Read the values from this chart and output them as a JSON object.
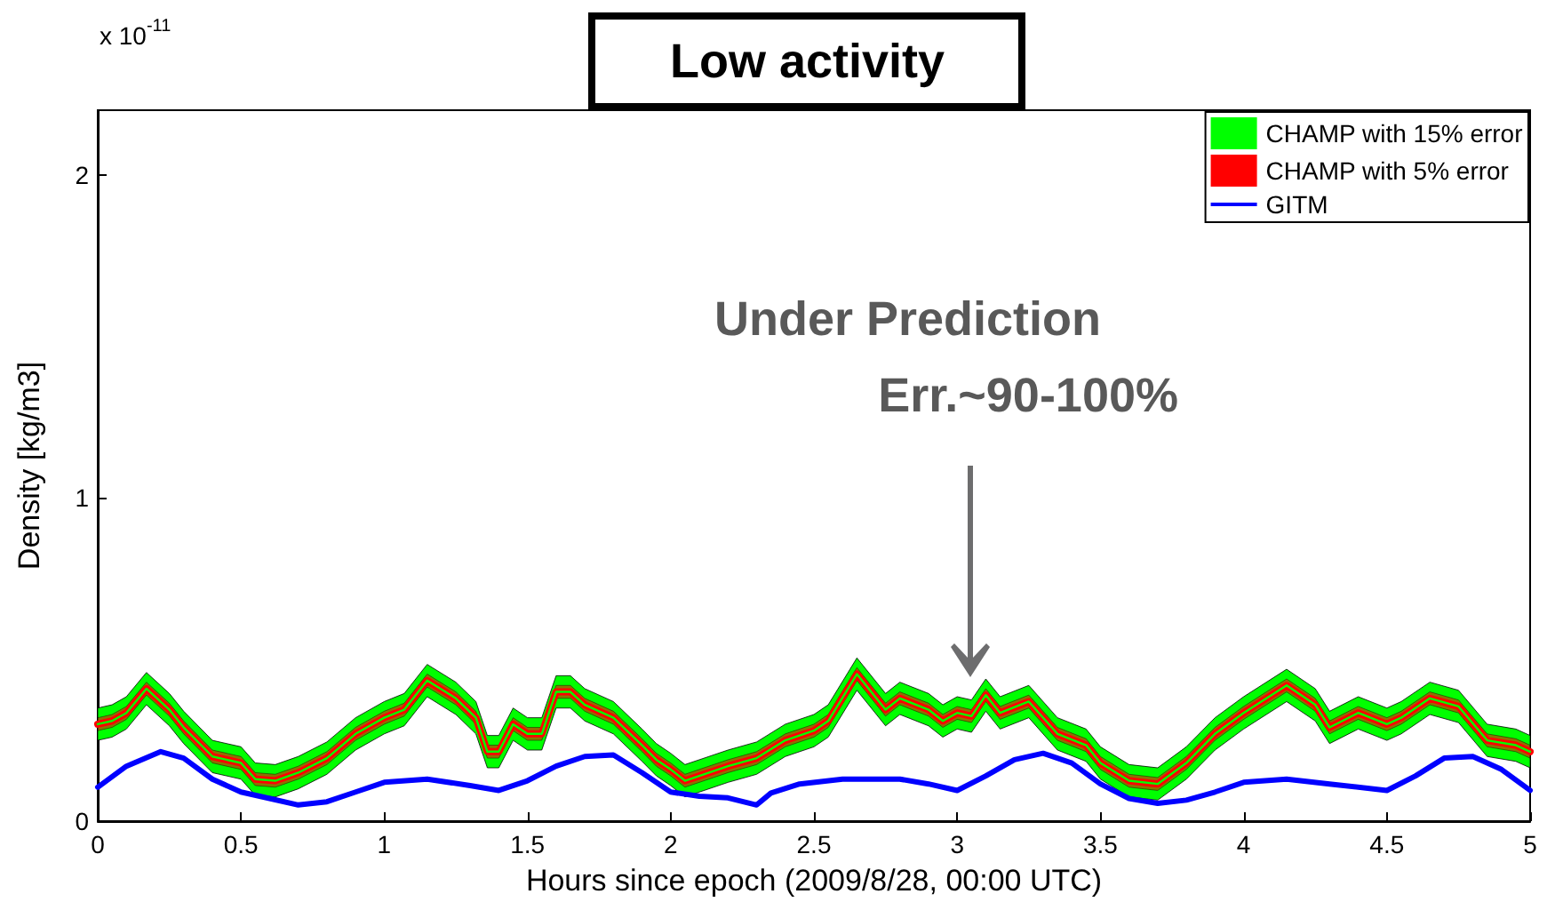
{
  "chart_data": {
    "type": "line",
    "title": "Low activity",
    "xlabel": "Hours since epoch (2009/8/28, 00:00 UTC)",
    "ylabel": "Density [kg/m3]",
    "annotations": [
      "x 10$^{-11}$",
      "Under Prediction",
      "Err.~90-100%"
    ],
    "x": [
      0,
      0.05,
      0.1,
      0.17,
      0.25,
      0.3,
      0.4,
      0.5,
      0.55,
      0.62,
      0.7,
      0.8,
      0.9,
      1.0,
      1.07,
      1.15,
      1.25,
      1.32,
      1.36,
      1.4,
      1.45,
      1.5,
      1.55,
      1.6,
      1.65,
      1.7,
      1.8,
      1.9,
      1.95,
      2.0,
      2.05,
      2.1,
      2.2,
      2.3,
      2.4,
      2.5,
      2.55,
      2.65,
      2.75,
      2.8,
      2.9,
      2.95,
      3.0,
      3.05,
      3.1,
      3.15,
      3.25,
      3.35,
      3.45,
      3.5,
      3.6,
      3.7,
      3.8,
      3.9,
      4.0,
      4.15,
      4.25,
      4.3,
      4.4,
      4.5,
      4.55,
      4.65,
      4.75,
      4.85,
      4.95,
      5.0
    ],
    "series": [
      {
        "name": "CHAMP with 15% error",
        "color": "#00ff00",
        "values": [
          0.3,
          0.31,
          0.335,
          0.41,
          0.345,
          0.29,
          0.2,
          0.18,
          0.13,
          0.125,
          0.15,
          0.195,
          0.27,
          0.32,
          0.345,
          0.435,
          0.38,
          0.32,
          0.215,
          0.215,
          0.3,
          0.27,
          0.27,
          0.4,
          0.4,
          0.36,
          0.32,
          0.235,
          0.19,
          0.16,
          0.125,
          0.14,
          0.17,
          0.195,
          0.25,
          0.28,
          0.31,
          0.455,
          0.345,
          0.38,
          0.345,
          0.31,
          0.335,
          0.325,
          0.39,
          0.335,
          0.37,
          0.27,
          0.235,
          0.18,
          0.125,
          0.115,
          0.18,
          0.27,
          0.335,
          0.42,
          0.36,
          0.29,
          0.335,
          0.3,
          0.32,
          0.38,
          0.355,
          0.25,
          0.235,
          0.215
        ],
        "lower": [
          0.25,
          0.26,
          0.285,
          0.36,
          0.295,
          0.24,
          0.15,
          0.13,
          0.08,
          0.075,
          0.1,
          0.145,
          0.22,
          0.27,
          0.295,
          0.385,
          0.33,
          0.27,
          0.165,
          0.165,
          0.25,
          0.22,
          0.22,
          0.35,
          0.35,
          0.31,
          0.27,
          0.185,
          0.14,
          0.11,
          0.075,
          0.09,
          0.12,
          0.145,
          0.2,
          0.23,
          0.26,
          0.405,
          0.295,
          0.33,
          0.295,
          0.26,
          0.285,
          0.275,
          0.34,
          0.285,
          0.32,
          0.22,
          0.185,
          0.13,
          0.075,
          0.065,
          0.13,
          0.22,
          0.285,
          0.37,
          0.31,
          0.24,
          0.285,
          0.25,
          0.27,
          0.33,
          0.305,
          0.2,
          0.185,
          0.165
        ],
        "upper": [
          0.35,
          0.36,
          0.385,
          0.46,
          0.395,
          0.34,
          0.25,
          0.23,
          0.18,
          0.175,
          0.2,
          0.245,
          0.32,
          0.37,
          0.395,
          0.485,
          0.43,
          0.37,
          0.265,
          0.265,
          0.35,
          0.32,
          0.32,
          0.45,
          0.45,
          0.41,
          0.37,
          0.285,
          0.24,
          0.21,
          0.175,
          0.19,
          0.22,
          0.245,
          0.3,
          0.33,
          0.36,
          0.505,
          0.395,
          0.43,
          0.395,
          0.36,
          0.385,
          0.375,
          0.44,
          0.385,
          0.42,
          0.32,
          0.285,
          0.23,
          0.175,
          0.165,
          0.23,
          0.32,
          0.385,
          0.47,
          0.41,
          0.34,
          0.385,
          0.35,
          0.37,
          0.43,
          0.405,
          0.3,
          0.285,
          0.265
        ]
      },
      {
        "name": "CHAMP with 5% error",
        "color": "#ff0000",
        "values": [
          0.3,
          0.31,
          0.335,
          0.41,
          0.345,
          0.29,
          0.2,
          0.18,
          0.13,
          0.125,
          0.15,
          0.195,
          0.27,
          0.32,
          0.345,
          0.435,
          0.38,
          0.32,
          0.215,
          0.215,
          0.3,
          0.27,
          0.27,
          0.4,
          0.4,
          0.36,
          0.32,
          0.235,
          0.19,
          0.16,
          0.125,
          0.14,
          0.17,
          0.195,
          0.25,
          0.28,
          0.31,
          0.455,
          0.345,
          0.38,
          0.345,
          0.31,
          0.335,
          0.325,
          0.39,
          0.335,
          0.37,
          0.27,
          0.235,
          0.18,
          0.125,
          0.115,
          0.18,
          0.27,
          0.335,
          0.42,
          0.36,
          0.29,
          0.335,
          0.3,
          0.32,
          0.38,
          0.355,
          0.25,
          0.235,
          0.215
        ],
        "lower": [
          0.28,
          0.29,
          0.315,
          0.39,
          0.325,
          0.27,
          0.18,
          0.16,
          0.11,
          0.105,
          0.13,
          0.175,
          0.25,
          0.3,
          0.325,
          0.415,
          0.36,
          0.3,
          0.195,
          0.195,
          0.28,
          0.25,
          0.25,
          0.38,
          0.38,
          0.34,
          0.3,
          0.215,
          0.17,
          0.14,
          0.105,
          0.12,
          0.15,
          0.175,
          0.23,
          0.26,
          0.29,
          0.435,
          0.325,
          0.36,
          0.325,
          0.29,
          0.315,
          0.305,
          0.37,
          0.315,
          0.35,
          0.25,
          0.215,
          0.16,
          0.105,
          0.095,
          0.16,
          0.25,
          0.315,
          0.4,
          0.34,
          0.27,
          0.315,
          0.28,
          0.3,
          0.36,
          0.335,
          0.23,
          0.215,
          0.195
        ],
        "upper": [
          0.32,
          0.33,
          0.355,
          0.43,
          0.365,
          0.31,
          0.22,
          0.2,
          0.15,
          0.145,
          0.17,
          0.215,
          0.29,
          0.34,
          0.365,
          0.455,
          0.4,
          0.34,
          0.235,
          0.235,
          0.32,
          0.29,
          0.29,
          0.42,
          0.42,
          0.38,
          0.34,
          0.255,
          0.21,
          0.18,
          0.145,
          0.16,
          0.19,
          0.215,
          0.27,
          0.3,
          0.33,
          0.475,
          0.365,
          0.4,
          0.365,
          0.33,
          0.355,
          0.345,
          0.41,
          0.355,
          0.39,
          0.29,
          0.255,
          0.2,
          0.145,
          0.135,
          0.2,
          0.29,
          0.355,
          0.44,
          0.38,
          0.31,
          0.355,
          0.32,
          0.34,
          0.4,
          0.375,
          0.27,
          0.255,
          0.235
        ]
      },
      {
        "name": "GITM",
        "color": "#0000ff",
        "x": [
          0,
          0.1,
          0.22,
          0.3,
          0.4,
          0.5,
          0.6,
          0.7,
          0.8,
          0.9,
          1.0,
          1.15,
          1.3,
          1.4,
          1.5,
          1.6,
          1.7,
          1.8,
          1.9,
          2.0,
          2.1,
          2.2,
          2.3,
          2.35,
          2.45,
          2.6,
          2.8,
          2.9,
          3.0,
          3.1,
          3.2,
          3.3,
          3.4,
          3.5,
          3.6,
          3.7,
          3.8,
          3.9,
          4.0,
          4.15,
          4.3,
          4.5,
          4.6,
          4.7,
          4.8,
          4.9,
          5.0
        ],
        "values": [
          0.105,
          0.17,
          0.215,
          0.195,
          0.13,
          0.09,
          0.07,
          0.05,
          0.06,
          0.09,
          0.12,
          0.13,
          0.11,
          0.095,
          0.125,
          0.17,
          0.2,
          0.205,
          0.15,
          0.09,
          0.077,
          0.072,
          0.05,
          0.087,
          0.115,
          0.13,
          0.13,
          0.115,
          0.095,
          0.14,
          0.19,
          0.21,
          0.18,
          0.115,
          0.07,
          0.055,
          0.065,
          0.09,
          0.12,
          0.13,
          0.115,
          0.095,
          0.14,
          0.195,
          0.2,
          0.16,
          0.095
        ]
      }
    ],
    "xlim": [
      0,
      5
    ],
    "xticks": [
      0,
      0.5,
      1,
      1.5,
      2,
      2.5,
      3,
      3.5,
      4,
      4.5,
      5
    ],
    "ylim": [
      0,
      2.2
    ],
    "yticks": [
      0,
      1,
      2
    ],
    "grid": false,
    "legend": "top right",
    "marker": "none",
    "line_style": "solid"
  }
}
